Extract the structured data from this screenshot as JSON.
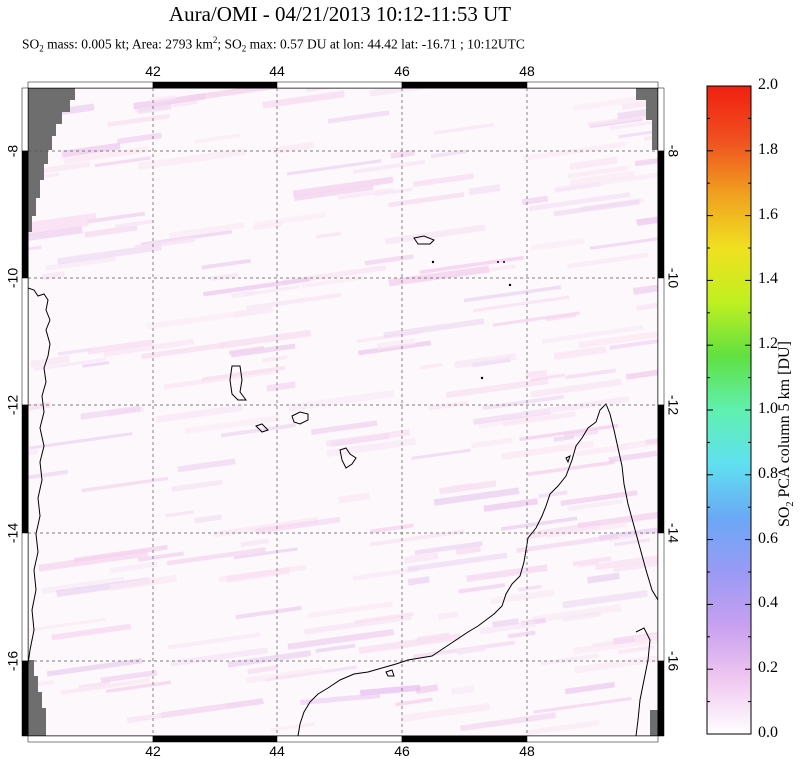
{
  "title": "Aura/OMI - 04/21/2013 10:12-11:53 UT",
  "subtitle": {
    "mass_text": "SO",
    "mass_sub": "2",
    "mass_rest": " mass: 0.005 kt; Area: 2793 km",
    "area_sup": "2",
    "max_text": "; SO",
    "max_sub": "2",
    "max_rest": " max: 0.57 DU at lon: 44.42 lat: -16.71 ; 10:12UTC"
  },
  "map": {
    "lon_ticks": [
      "42",
      "44",
      "46",
      "48"
    ],
    "lat_ticks": [
      "-8",
      "-10",
      "-12",
      "-14",
      "-16"
    ],
    "land_color": "#000000",
    "nodata_color": "#6e6e6e",
    "background_color": "#fdf8fb"
  },
  "colorbar": {
    "title_pre": "SO",
    "title_sub": "2",
    "title_post": " PCA column 5 km [DU]",
    "labels": [
      "2.0",
      "1.8",
      "1.6",
      "1.4",
      "1.2",
      "1.0",
      "0.8",
      "0.6",
      "0.4",
      "0.2",
      "0.0"
    ],
    "min": 0.0,
    "max": 2.0,
    "colors": [
      "#ffffff",
      "#f0c8f0",
      "#c8a0f0",
      "#9a9af5",
      "#6aa8f5",
      "#60e0f0",
      "#60f0b0",
      "#60e040",
      "#c0f020",
      "#f0e020",
      "#f0a020",
      "#f05020",
      "#f02010"
    ]
  }
}
